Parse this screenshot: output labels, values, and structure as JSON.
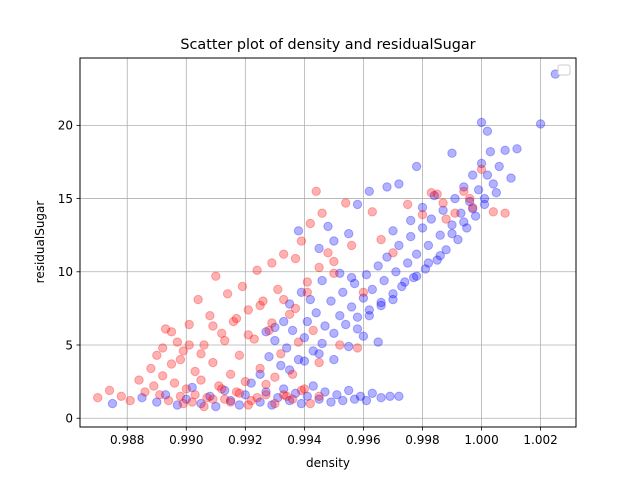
{
  "chart_data": {
    "type": "scatter",
    "title": "Scatter plot of density and residualSugar",
    "xlabel": "density",
    "ylabel": "residualSugar",
    "xlim": [
      0.9864,
      1.0032
    ],
    "ylim": [
      -0.6,
      24.6
    ],
    "x_ticks": [
      0.988,
      0.99,
      0.992,
      0.994,
      0.996,
      0.998,
      1.0,
      1.002
    ],
    "x_tick_labels": [
      "0.988",
      "0.990",
      "0.992",
      "0.994",
      "0.996",
      "0.998",
      "1.000",
      "1.002"
    ],
    "y_ticks": [
      0,
      5,
      10,
      15,
      20
    ],
    "y_tick_labels": [
      "0",
      "5",
      "10",
      "15",
      "20"
    ],
    "grid": true,
    "legend": "upper right (empty)",
    "series": [
      {
        "color": "#0000ff",
        "points": [
          [
            0.9875,
            1.0
          ],
          [
            0.9885,
            1.4
          ],
          [
            0.989,
            1.1
          ],
          [
            0.9893,
            1.6
          ],
          [
            0.9897,
            0.9
          ],
          [
            0.99,
            1.3
          ],
          [
            0.9902,
            2.1
          ],
          [
            0.9905,
            1.0
          ],
          [
            0.9908,
            1.5
          ],
          [
            0.991,
            0.8
          ],
          [
            0.9913,
            1.9
          ],
          [
            0.9915,
            1.2
          ],
          [
            0.9918,
            0.9
          ],
          [
            0.992,
            1.6
          ],
          [
            0.9922,
            2.4
          ],
          [
            0.9925,
            1.1
          ],
          [
            0.9927,
            1.8
          ],
          [
            0.9929,
            0.9
          ],
          [
            0.9931,
            1.4
          ],
          [
            0.9933,
            2.0
          ],
          [
            0.9935,
            1.2
          ],
          [
            0.9937,
            1.7
          ],
          [
            0.9939,
            1.0
          ],
          [
            0.9941,
            1.5
          ],
          [
            0.9943,
            2.2
          ],
          [
            0.9945,
            1.3
          ],
          [
            0.9947,
            1.8
          ],
          [
            0.9949,
            1.1
          ],
          [
            0.9951,
            1.6
          ],
          [
            0.9953,
            1.2
          ],
          [
            0.9955,
            1.9
          ],
          [
            0.9957,
            1.3
          ],
          [
            0.9959,
            1.5
          ],
          [
            0.9961,
            1.2
          ],
          [
            0.9963,
            1.7
          ],
          [
            0.9966,
            1.4
          ],
          [
            0.9969,
            1.5
          ],
          [
            0.9972,
            1.5
          ],
          [
            0.9925,
            3.0
          ],
          [
            0.9928,
            4.2
          ],
          [
            0.993,
            5.3
          ],
          [
            0.9932,
            3.6
          ],
          [
            0.9934,
            4.8
          ],
          [
            0.9936,
            6.0
          ],
          [
            0.9938,
            4.0
          ],
          [
            0.994,
            5.5
          ],
          [
            0.9941,
            6.6
          ],
          [
            0.9943,
            4.6
          ],
          [
            0.9944,
            7.2
          ],
          [
            0.9946,
            5.1
          ],
          [
            0.9947,
            6.3
          ],
          [
            0.9949,
            8.0
          ],
          [
            0.995,
            5.8
          ],
          [
            0.9952,
            7.0
          ],
          [
            0.9953,
            8.6
          ],
          [
            0.9954,
            6.4
          ],
          [
            0.9956,
            7.6
          ],
          [
            0.9957,
            9.2
          ],
          [
            0.9958,
            6.9
          ],
          [
            0.996,
            8.2
          ],
          [
            0.9961,
            9.8
          ],
          [
            0.9962,
            7.4
          ],
          [
            0.9963,
            8.8
          ],
          [
            0.9965,
            10.4
          ],
          [
            0.9966,
            7.9
          ],
          [
            0.9967,
            9.4
          ],
          [
            0.9968,
            11.0
          ],
          [
            0.997,
            8.5
          ],
          [
            0.9971,
            10.0
          ],
          [
            0.9972,
            11.8
          ],
          [
            0.9973,
            9.0
          ],
          [
            0.9975,
            10.6
          ],
          [
            0.9976,
            12.4
          ],
          [
            0.9977,
            9.6
          ],
          [
            0.9978,
            11.2
          ],
          [
            0.998,
            13.0
          ],
          [
            0.9981,
            10.2
          ],
          [
            0.9982,
            11.8
          ],
          [
            0.9983,
            13.6
          ],
          [
            0.9985,
            10.8
          ],
          [
            0.9986,
            12.5
          ],
          [
            0.9987,
            14.2
          ],
          [
            0.9988,
            11.5
          ],
          [
            0.999,
            13.2
          ],
          [
            0.9991,
            15.0
          ],
          [
            0.9992,
            12.2
          ],
          [
            0.9993,
            14.0
          ],
          [
            0.9994,
            15.8
          ],
          [
            0.9995,
            13.0
          ],
          [
            0.9996,
            14.8
          ],
          [
            0.9997,
            16.6
          ],
          [
            0.9998,
            13.8
          ],
          [
            0.9999,
            15.6
          ],
          [
            1.0,
            17.4
          ],
          [
            1.0001,
            15.0
          ],
          [
            1.0002,
            16.6
          ],
          [
            1.0003,
            18.2
          ],
          [
            1.0004,
            16.0
          ],
          [
            1.0006,
            17.2
          ],
          [
            1.0008,
            18.3
          ],
          [
            1.001,
            16.4
          ],
          [
            1.0012,
            18.4
          ],
          [
            1.0,
            20.2
          ],
          [
            1.0002,
            19.6
          ],
          [
            1.002,
            20.1
          ],
          [
            1.0025,
            23.5
          ],
          [
            0.999,
            18.1
          ],
          [
            0.9978,
            17.2
          ],
          [
            0.9972,
            16.0
          ],
          [
            0.9968,
            15.8
          ],
          [
            0.9962,
            15.5
          ],
          [
            0.9958,
            14.6
          ],
          [
            0.9955,
            12.6
          ],
          [
            0.995,
            12.1
          ],
          [
            0.9945,
            11.6
          ],
          [
            0.9938,
            12.8
          ],
          [
            0.9948,
            13.1
          ],
          [
            0.9956,
            9.6
          ],
          [
            0.9952,
            9.9
          ],
          [
            0.9946,
            9.4
          ],
          [
            0.9942,
            8.1
          ],
          [
            0.9939,
            8.6
          ],
          [
            0.9935,
            7.8
          ],
          [
            0.9933,
            6.6
          ],
          [
            0.993,
            6.2
          ],
          [
            0.9927,
            5.9
          ],
          [
            0.9935,
            3.3
          ],
          [
            0.994,
            3.9
          ],
          [
            0.9945,
            4.4
          ],
          [
            0.995,
            4.0
          ],
          [
            0.9955,
            4.9
          ],
          [
            0.996,
            5.6
          ],
          [
            0.9965,
            5.2
          ],
          [
            0.9958,
            6.1
          ],
          [
            0.9962,
            7.0
          ],
          [
            0.9966,
            7.7
          ],
          [
            0.997,
            8.1
          ],
          [
            0.9974,
            9.3
          ],
          [
            0.9978,
            9.7
          ],
          [
            0.9982,
            10.6
          ],
          [
            0.9986,
            11.1
          ],
          [
            0.999,
            12.6
          ],
          [
            0.9994,
            13.4
          ],
          [
            0.9997,
            14.3
          ],
          [
            1.0001,
            14.6
          ],
          [
            1.0005,
            15.4
          ],
          [
            0.9984,
            15.2
          ],
          [
            0.998,
            14.4
          ],
          [
            0.9976,
            13.5
          ],
          [
            0.997,
            12.8
          ]
        ]
      },
      {
        "color": "#ff0000",
        "points": [
          [
            0.987,
            1.4
          ],
          [
            0.9874,
            1.9
          ],
          [
            0.9878,
            1.5
          ],
          [
            0.9881,
            1.2
          ],
          [
            0.9884,
            2.6
          ],
          [
            0.9886,
            1.8
          ],
          [
            0.9888,
            3.4
          ],
          [
            0.9889,
            2.2
          ],
          [
            0.989,
            4.3
          ],
          [
            0.9891,
            1.6
          ],
          [
            0.9892,
            2.9
          ],
          [
            0.9893,
            6.1
          ],
          [
            0.9894,
            1.2
          ],
          [
            0.9895,
            3.7
          ],
          [
            0.9896,
            2.4
          ],
          [
            0.9897,
            5.2
          ],
          [
            0.9898,
            1.5
          ],
          [
            0.9899,
            4.6
          ],
          [
            0.99,
            2.0
          ],
          [
            0.9901,
            6.4
          ],
          [
            0.9902,
            1.1
          ],
          [
            0.9903,
            3.2
          ],
          [
            0.9904,
            8.1
          ],
          [
            0.9905,
            2.6
          ],
          [
            0.9906,
            5.0
          ],
          [
            0.9907,
            1.4
          ],
          [
            0.9908,
            7.0
          ],
          [
            0.9909,
            3.8
          ],
          [
            0.991,
            9.7
          ],
          [
            0.9911,
            2.2
          ],
          [
            0.9912,
            5.8
          ],
          [
            0.9913,
            1.3
          ],
          [
            0.9914,
            8.5
          ],
          [
            0.9915,
            3.0
          ],
          [
            0.9916,
            6.6
          ],
          [
            0.9917,
            1.8
          ],
          [
            0.9918,
            4.3
          ],
          [
            0.9919,
            9.0
          ],
          [
            0.992,
            2.5
          ],
          [
            0.9921,
            7.4
          ],
          [
            0.9922,
            1.2
          ],
          [
            0.9923,
            5.4
          ],
          [
            0.9924,
            10.1
          ],
          [
            0.9925,
            3.4
          ],
          [
            0.9926,
            8.0
          ],
          [
            0.9927,
            1.6
          ],
          [
            0.9928,
            6.0
          ],
          [
            0.9929,
            10.6
          ],
          [
            0.993,
            2.8
          ],
          [
            0.9931,
            8.8
          ],
          [
            0.9932,
            4.4
          ],
          [
            0.9933,
            11.2
          ],
          [
            0.9934,
            1.5
          ],
          [
            0.9935,
            7.1
          ],
          [
            0.9936,
            3.0
          ],
          [
            0.9937,
            10.9
          ],
          [
            0.9938,
            5.2
          ],
          [
            0.9939,
            12.1
          ],
          [
            0.994,
            2.0
          ],
          [
            0.9941,
            8.6
          ],
          [
            0.9942,
            13.3
          ],
          [
            0.9943,
            6.0
          ],
          [
            0.9944,
            15.5
          ],
          [
            0.9945,
            3.8
          ],
          [
            0.9946,
            14.0
          ],
          [
            0.9948,
            11.3
          ],
          [
            0.995,
            9.9
          ],
          [
            0.9952,
            5.0
          ],
          [
            0.9954,
            14.7
          ],
          [
            0.9956,
            11.8
          ],
          [
            0.9958,
            4.8
          ],
          [
            0.996,
            8.6
          ],
          [
            0.9963,
            14.1
          ],
          [
            0.9966,
            12.2
          ],
          [
            0.997,
            11.3
          ],
          [
            0.9975,
            14.6
          ],
          [
            0.998,
            13.9
          ],
          [
            0.9983,
            15.4
          ],
          [
            0.9985,
            15.3
          ],
          [
            0.9988,
            13.6
          ],
          [
            0.9991,
            14.0
          ],
          [
            0.9994,
            15.5
          ],
          [
            0.9997,
            14.4
          ],
          [
            1.0,
            17.0
          ],
          [
            1.0004,
            14.1
          ],
          [
            1.0008,
            14.0
          ],
          [
            0.9996,
            15.0
          ],
          [
            0.9987,
            14.7
          ],
          [
            0.9899,
            1.0
          ],
          [
            0.9903,
            1.6
          ],
          [
            0.9906,
            0.8
          ],
          [
            0.9909,
            1.3
          ],
          [
            0.9912,
            2.0
          ],
          [
            0.9915,
            1.1
          ],
          [
            0.9918,
            1.7
          ],
          [
            0.9921,
            0.9
          ],
          [
            0.9924,
            1.4
          ],
          [
            0.9927,
            2.3
          ],
          [
            0.993,
            1.0
          ],
          [
            0.9933,
            1.6
          ],
          [
            0.9936,
            1.3
          ],
          [
            0.9939,
            1.9
          ],
          [
            0.9942,
            1.0
          ],
          [
            0.9945,
            1.5
          ],
          [
            0.9892,
            4.8
          ],
          [
            0.9895,
            5.9
          ],
          [
            0.9898,
            4.0
          ],
          [
            0.9901,
            5.0
          ],
          [
            0.9905,
            4.4
          ],
          [
            0.9909,
            6.3
          ],
          [
            0.9913,
            5.3
          ],
          [
            0.9917,
            6.8
          ],
          [
            0.9921,
            5.7
          ],
          [
            0.9925,
            7.7
          ],
          [
            0.9929,
            6.5
          ],
          [
            0.9933,
            8.1
          ],
          [
            0.9937,
            7.5
          ],
          [
            0.9941,
            9.3
          ],
          [
            0.9945,
            10.3
          ],
          [
            0.995,
            10.7
          ]
        ]
      }
    ]
  }
}
